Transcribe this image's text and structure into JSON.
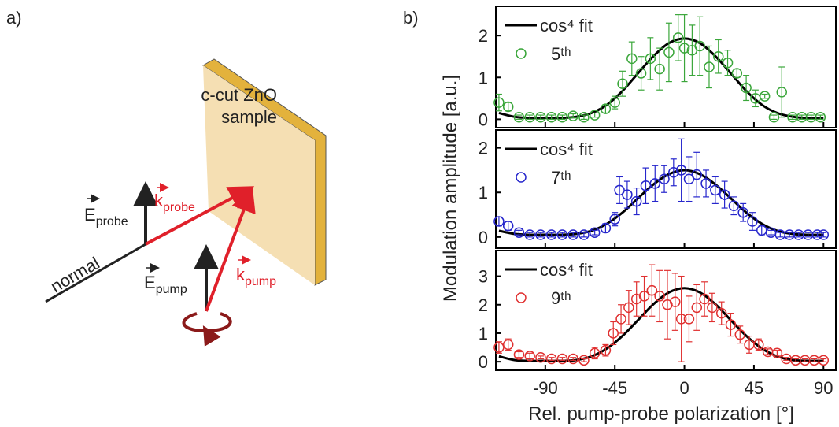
{
  "diagram": {
    "panel_label": "a)",
    "sample_label": [
      "c-cut ZnO",
      "sample"
    ],
    "normal_label": "normal",
    "e_probe": {
      "main": "E",
      "sub": "probe"
    },
    "k_probe": {
      "main": "k",
      "sub": "probe"
    },
    "e_pump": {
      "main": "E",
      "sub": "pump"
    },
    "k_pump": {
      "main": "k",
      "sub": "pump"
    }
  },
  "panel_label": "b)",
  "chart_data": [
    {
      "type": "scatter",
      "xlim": [
        -122,
        98
      ],
      "xticks": [
        -90,
        -45,
        0,
        45,
        90
      ],
      "ylim": [
        -0.2,
        2.7
      ],
      "yticks": [
        0,
        1,
        2
      ],
      "series": [
        {
          "name": "cos⁴ fit",
          "color": "#000000",
          "style": "line",
          "x": [
            -120,
            -110,
            -100,
            -90,
            -80,
            -70,
            -60,
            -50,
            -40,
            -30,
            -20,
            -10,
            0,
            10,
            20,
            30,
            40,
            50,
            60,
            70,
            80,
            90
          ],
          "values": [
            0.15,
            0.06,
            0.03,
            0.03,
            0.03,
            0.06,
            0.15,
            0.35,
            0.68,
            1.1,
            1.51,
            1.82,
            1.93,
            1.82,
            1.51,
            1.1,
            0.68,
            0.35,
            0.15,
            0.06,
            0.03,
            0.03
          ]
        },
        {
          "name": "5ᵗʰ",
          "color": "#3aa63a",
          "style": "markers",
          "x": [
            -120,
            -114,
            -107,
            -100,
            -93,
            -86,
            -79,
            -72,
            -65,
            -58,
            -51,
            -45,
            -40,
            -34,
            -28,
            -22,
            -16,
            -10,
            -4,
            0,
            5,
            10,
            16,
            22,
            28,
            34,
            40,
            46,
            52,
            58,
            63,
            70,
            76,
            82,
            88
          ],
          "values": [
            0.4,
            0.3,
            0.05,
            0.05,
            0.05,
            0.05,
            0.05,
            0.08,
            0.05,
            0.1,
            0.25,
            0.4,
            0.85,
            1.45,
            1.1,
            1.45,
            1.2,
            1.6,
            1.95,
            1.7,
            1.65,
            1.75,
            1.25,
            1.5,
            1.35,
            1.1,
            0.75,
            0.5,
            0.55,
            0.05,
            0.65,
            0.05,
            0.05,
            0.05,
            0.05
          ],
          "errors": [
            0.2,
            0.1,
            0.05,
            0.05,
            0.05,
            0.05,
            0.05,
            0.05,
            0.05,
            0.05,
            0.1,
            0.15,
            0.3,
            0.4,
            0.4,
            0.5,
            0.5,
            0.7,
            0.55,
            0.8,
            0.6,
            0.7,
            0.5,
            0.4,
            0.3,
            0.1,
            0.3,
            0.2,
            0.05,
            0.05,
            0.6,
            0.05,
            0.05,
            0.05,
            0.05
          ]
        }
      ]
    },
    {
      "type": "scatter",
      "ylabel": "Modulation amplitude [a.u.]",
      "xlim": [
        -122,
        98
      ],
      "xticks": [
        -90,
        -45,
        0,
        45,
        90
      ],
      "ylim": [
        -0.25,
        2.4
      ],
      "yticks": [
        0,
        1,
        2
      ],
      "series": [
        {
          "name": "cos⁴ fit",
          "color": "#000000",
          "style": "line",
          "x": [
            -120,
            -110,
            -100,
            -90,
            -80,
            -70,
            -60,
            -50,
            -40,
            -30,
            -20,
            -10,
            0,
            10,
            20,
            30,
            40,
            50,
            60,
            70,
            80,
            90
          ],
          "values": [
            0.14,
            0.07,
            0.05,
            0.05,
            0.05,
            0.07,
            0.14,
            0.3,
            0.55,
            0.87,
            1.18,
            1.41,
            1.5,
            1.41,
            1.18,
            0.87,
            0.55,
            0.3,
            0.14,
            0.07,
            0.05,
            0.05
          ]
        },
        {
          "name": "7ᵗʰ",
          "color": "#2626cc",
          "style": "markers",
          "x": [
            -120,
            -114,
            -107,
            -100,
            -93,
            -86,
            -79,
            -72,
            -65,
            -58,
            -51,
            -45,
            -42,
            -37,
            -31,
            -25,
            -19,
            -13,
            -7,
            -2,
            3,
            8,
            14,
            20,
            26,
            32,
            38,
            44,
            50,
            56,
            62,
            68,
            74,
            80,
            86,
            90
          ],
          "values": [
            0.35,
            0.25,
            0.1,
            0.05,
            0.05,
            0.05,
            0.05,
            0.05,
            0.05,
            0.1,
            0.2,
            0.4,
            1.05,
            0.95,
            0.8,
            1.15,
            1.2,
            1.3,
            1.45,
            1.5,
            1.3,
            1.4,
            1.2,
            1.05,
            0.95,
            0.7,
            0.55,
            0.35,
            0.15,
            0.1,
            0.05,
            0.05,
            0.05,
            0.05,
            0.05,
            0.05
          ],
          "errors": [
            0.1,
            0.1,
            0.05,
            0.05,
            0.05,
            0.05,
            0.05,
            0.05,
            0.05,
            0.05,
            0.1,
            0.15,
            0.3,
            0.3,
            0.3,
            0.4,
            0.4,
            0.3,
            0.3,
            0.7,
            0.5,
            0.5,
            0.3,
            0.3,
            0.3,
            0.2,
            0.2,
            0.2,
            0.1,
            0.05,
            0.05,
            0.05,
            0.05,
            0.05,
            0.05,
            0.05
          ]
        }
      ]
    },
    {
      "type": "scatter",
      "xlabel": "Rel. pump-probe polarization [°]",
      "xlim": [
        -122,
        98
      ],
      "xticks": [
        -90,
        -45,
        0,
        45,
        90
      ],
      "ylim": [
        -0.3,
        3.9
      ],
      "yticks": [
        0,
        1,
        2,
        3
      ],
      "series": [
        {
          "name": "cos⁴ fit",
          "color": "#000000",
          "style": "line",
          "x": [
            -120,
            -110,
            -100,
            -90,
            -80,
            -70,
            -60,
            -50,
            -40,
            -30,
            -20,
            -10,
            0,
            10,
            20,
            30,
            40,
            50,
            60,
            70,
            80,
            90
          ],
          "values": [
            0.19,
            0.06,
            0.03,
            0.03,
            0.03,
            0.06,
            0.19,
            0.47,
            0.91,
            1.46,
            2.02,
            2.43,
            2.58,
            2.43,
            2.02,
            1.46,
            0.91,
            0.47,
            0.19,
            0.06,
            0.03,
            0.03
          ]
        },
        {
          "name": "9ᵗʰ",
          "color": "#e03030",
          "style": "markers",
          "x": [
            -120,
            -114,
            -107,
            -100,
            -93,
            -86,
            -79,
            -72,
            -65,
            -58,
            -51,
            -46,
            -41,
            -36,
            -31,
            -26,
            -21,
            -16,
            -11,
            -6,
            -2,
            3,
            8,
            13,
            18,
            24,
            30,
            36,
            42,
            48,
            54,
            60,
            66,
            72,
            78,
            84,
            90
          ],
          "values": [
            0.5,
            0.6,
            0.25,
            0.2,
            0.15,
            0.1,
            0.1,
            0.1,
            0.05,
            0.3,
            0.4,
            1.0,
            1.5,
            1.9,
            2.2,
            2.3,
            2.5,
            2.3,
            2.0,
            2.1,
            1.5,
            1.5,
            1.9,
            2.2,
            1.9,
            1.7,
            1.3,
            0.95,
            0.6,
            0.6,
            0.35,
            0.3,
            0.1,
            0.05,
            0.05,
            0.05,
            0.05
          ],
          "errors": [
            0.2,
            0.2,
            0.1,
            0.1,
            0.05,
            0.05,
            0.05,
            0.05,
            0.05,
            0.2,
            0.2,
            0.4,
            0.5,
            0.6,
            0.6,
            0.7,
            0.9,
            0.9,
            1.2,
            1.0,
            1.5,
            0.8,
            0.8,
            0.6,
            0.5,
            0.4,
            0.4,
            0.3,
            0.3,
            0.2,
            0.1,
            0.1,
            0.05,
            0.05,
            0.05,
            0.05,
            0.05
          ]
        }
      ]
    }
  ]
}
